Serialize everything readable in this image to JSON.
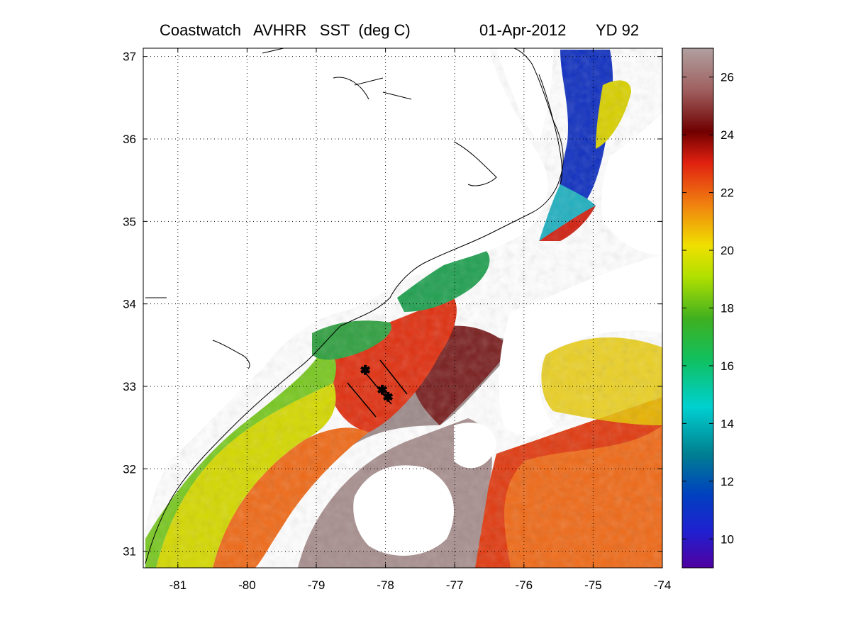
{
  "title": {
    "product": "Coastwatch   AVHRR   SST  (deg C)",
    "date": "01-Apr-2012",
    "yearday": "YD 92"
  },
  "map": {
    "lon_range": [
      -81.5,
      -74
    ],
    "lat_range": [
      30.8,
      37.1
    ],
    "lon_ticks": [
      "-81",
      "-80",
      "-79",
      "-78",
      "-77",
      "-76",
      "-75",
      "-74"
    ],
    "lat_ticks": [
      "37",
      "36",
      "35",
      "34",
      "33",
      "32",
      "31"
    ],
    "grid": "dotted",
    "colors": {
      "coastline": "#000000",
      "cloud_mask": "#ffffff"
    }
  },
  "colorbar": {
    "range": [
      9,
      27
    ],
    "ticks": [
      "26",
      "24",
      "22",
      "20",
      "18",
      "16",
      "14",
      "12",
      "10"
    ],
    "stops": [
      "#5000a0",
      "#2020d0",
      "#0040c0",
      "#008090",
      "#00d0d0",
      "#10c060",
      "#40b020",
      "#b0e000",
      "#f0e000",
      "#f08010",
      "#e02010",
      "#700000",
      "#a06060",
      "#b0a0a0"
    ]
  }
}
